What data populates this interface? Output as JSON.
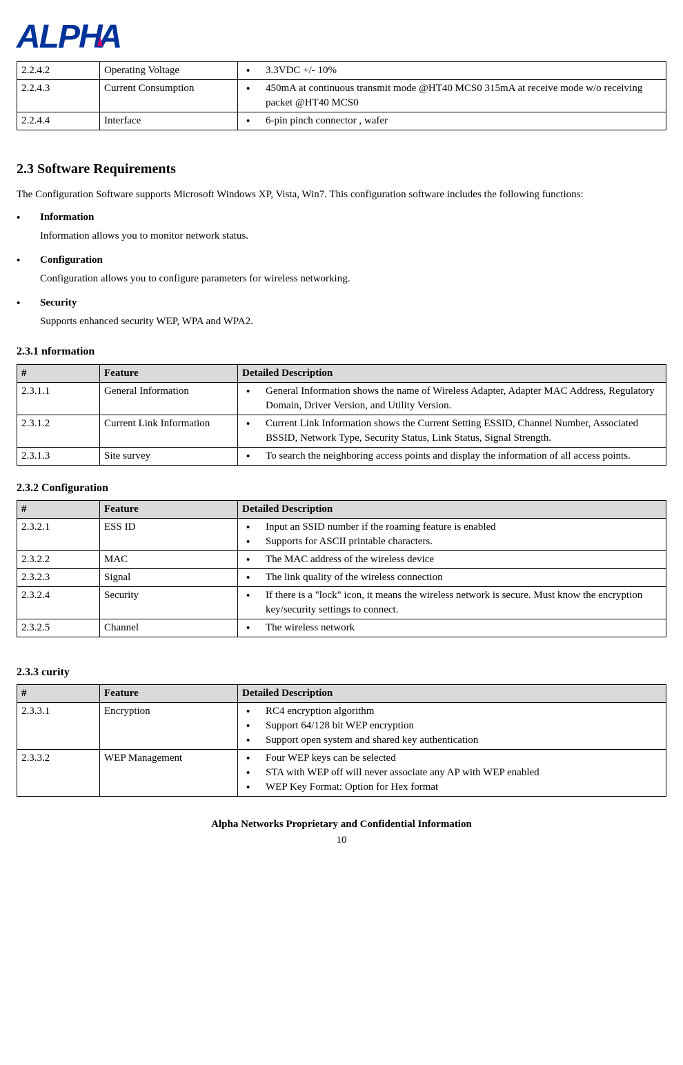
{
  "logo": {
    "text": "ALPHA"
  },
  "topTable": {
    "rows": [
      {
        "num": "2.2.4.2",
        "feat": "Operating Voltage",
        "items": [
          "3.3VDC +/- 10%"
        ]
      },
      {
        "num": "2.2.4.3",
        "feat": "Current Consumption",
        "items": [
          "450mA at continuous transmit mode @HT40 MCS0  315mA at receive mode w/o receiving packet @HT40 MCS0"
        ]
      },
      {
        "num": "2.2.4.4",
        "feat": "Interface",
        "items": [
          "6-pin pinch connector , wafer"
        ]
      }
    ]
  },
  "section23": {
    "title": "2.3 Software Requirements",
    "intro": "The Configuration Software supports Microsoft Windows XP, Vista, Win7. This configuration software includes the following functions:",
    "bullets": [
      {
        "label": "Information",
        "desc": "Information allows you to monitor network status."
      },
      {
        "label": "Configuration",
        "desc": "Configuration allows you to configure parameters for wireless networking."
      },
      {
        "label": "Security",
        "desc": "Supports enhanced security WEP, WPA and WPA2."
      }
    ]
  },
  "headers": {
    "num": "#",
    "feat": "Feature",
    "desc": "Detailed Description"
  },
  "t231": {
    "title": "2.3.1 nformation",
    "rows": [
      {
        "num": " 2.3.1.1",
        "feat": "General Information",
        "items": [
          "General Information shows the name of Wireless Adapter, Adapter MAC Address, Regulatory Domain, Driver Version, and Utility Version."
        ]
      },
      {
        "num": " 2.3.1.2",
        "feat": "Current Link Information",
        "items": [
          "Current Link Information shows the Current Setting ESSID, Channel Number, Associated BSSID, Network Type, Security Status, Link Status, Signal Strength."
        ]
      },
      {
        "num": "2.3.1.3",
        "feat": "Site survey",
        "items": [
          "To search the neighboring access points and display the information of all access points."
        ]
      }
    ]
  },
  "t232": {
    "title": "2.3.2 Configuration",
    "rows": [
      {
        "num": " 2.3.2.1",
        "feat": "ESS ID",
        "items": [
          "Input an SSID number if the roaming feature is enabled",
          "Supports for ASCII printable characters."
        ]
      },
      {
        "num": " 2.3.2.2",
        "feat": "MAC",
        "items": [
          "The  MAC address of the wireless device"
        ]
      },
      {
        "num": " 2.3.2.3",
        "feat": "Signal",
        "items": [
          "The link quality of the wireless connection"
        ]
      },
      {
        "num": " 2.3.2.4",
        "feat": "Security",
        "items": [
          "If there is a \"lock\" icon, it means the wireless network is secure. Must know the encryption key/security settings to connect."
        ]
      },
      {
        "num": " 2.3.2.5",
        "feat": "Channel",
        "items": [
          "The wireless network"
        ]
      }
    ]
  },
  "t233": {
    "title": "2.3.3 curity",
    "rows": [
      {
        "num": " 2.3.3.1",
        "feat": "Encryption",
        "items": [
          "RC4 encryption algorithm",
          "Support 64/128 bit WEP encryption",
          "Support open system and shared key authentication"
        ]
      },
      {
        "num": " 2.3.3.2",
        "feat": "WEP Management",
        "items": [
          "Four WEP keys can be selected",
          "STA with WEP off will never associate any AP with WEP enabled",
          "WEP Key Format: Option for Hex format"
        ]
      }
    ]
  },
  "footer": {
    "line1": "Alpha Networks Proprietary and Confidential Information",
    "page": "10"
  }
}
